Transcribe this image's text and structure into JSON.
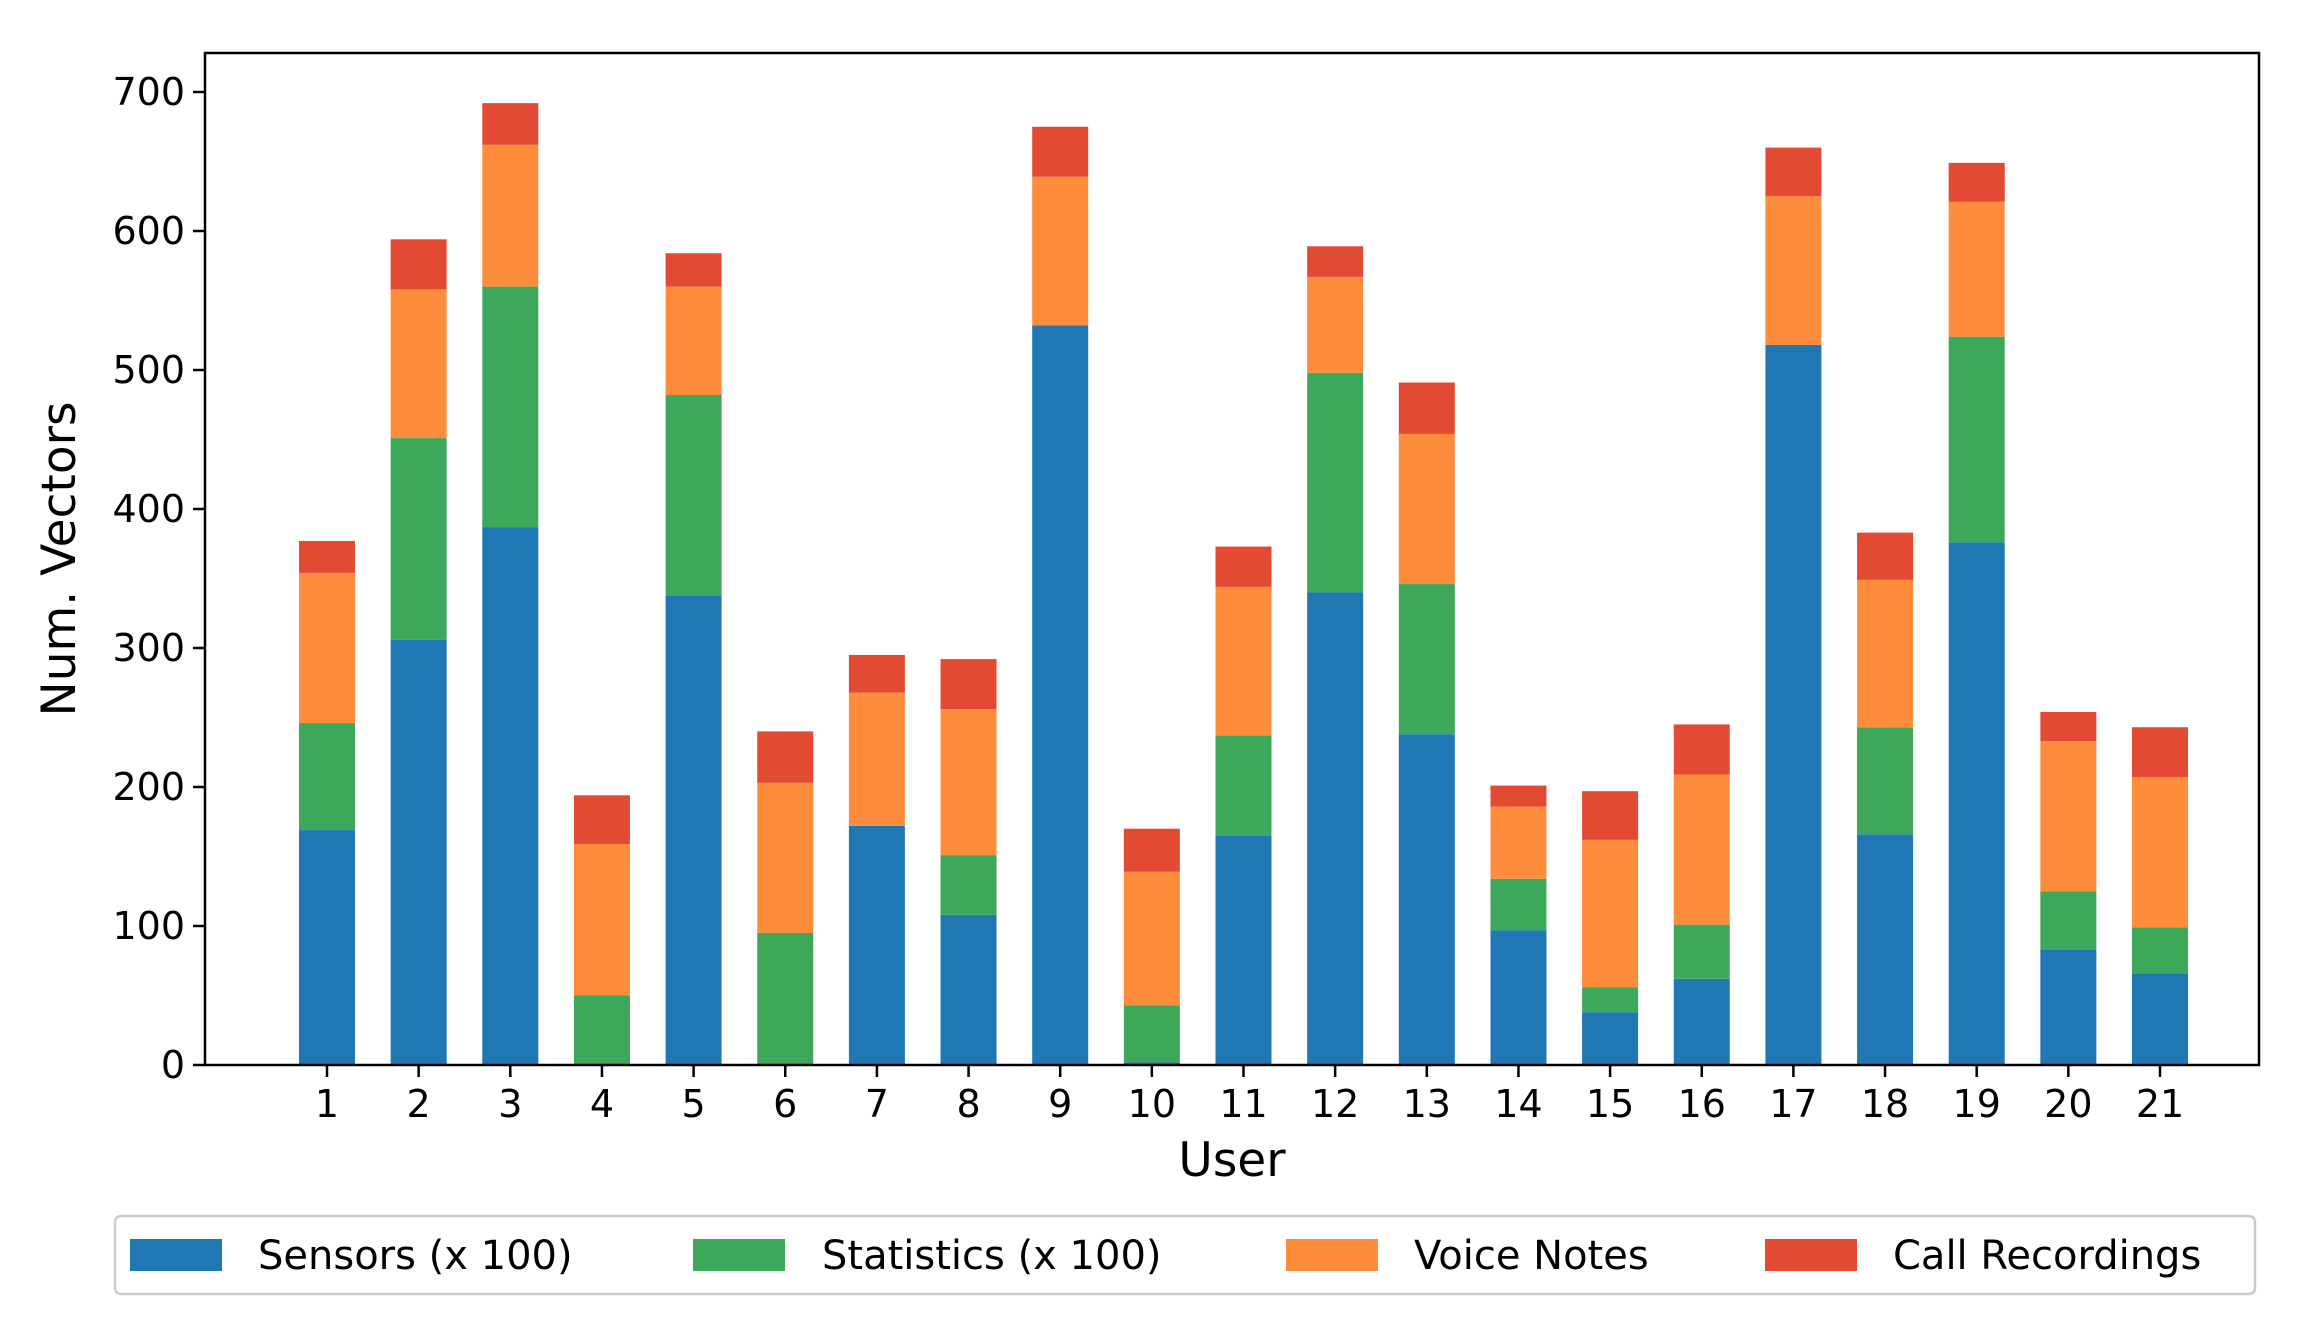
{
  "chart_data": {
    "type": "bar",
    "stacked": true,
    "title": "",
    "xlabel": "User",
    "ylabel": "Num. Vectors",
    "ylim": [
      0,
      700
    ],
    "yticks": [
      0,
      100,
      200,
      300,
      400,
      500,
      600,
      700
    ],
    "categories": [
      "1",
      "2",
      "3",
      "4",
      "5",
      "6",
      "7",
      "8",
      "9",
      "10",
      "11",
      "12",
      "13",
      "14",
      "15",
      "16",
      "17",
      "18",
      "19",
      "20",
      "21"
    ],
    "grid": false,
    "legend_position": "bottom",
    "series": [
      {
        "name": "Sensors (x 100)",
        "color": "#1f77b4",
        "values": [
          169,
          306,
          387,
          0,
          338,
          0,
          172,
          108,
          532,
          2,
          165,
          340,
          238,
          97,
          38,
          62,
          518,
          166,
          376,
          83,
          66
        ]
      },
      {
        "name": "Statistics (x 100)",
        "color": "#3da85a",
        "values": [
          77,
          145,
          173,
          50,
          144,
          95,
          0,
          43,
          0,
          41,
          72,
          158,
          108,
          37,
          18,
          39,
          0,
          77,
          148,
          42,
          33
        ]
      },
      {
        "name": "Voice Notes",
        "color": "#fd8d3c",
        "values": [
          108,
          107,
          102,
          109,
          78,
          108,
          96,
          105,
          107,
          96,
          107,
          69,
          108,
          52,
          106,
          108,
          107,
          106,
          97,
          108,
          108
        ]
      },
      {
        "name": "Call Recordings",
        "color": "#e34a33",
        "values": [
          23,
          36,
          30,
          35,
          24,
          37,
          27,
          36,
          36,
          31,
          29,
          22,
          37,
          15,
          35,
          36,
          35,
          34,
          28,
          21,
          36
        ]
      }
    ]
  }
}
